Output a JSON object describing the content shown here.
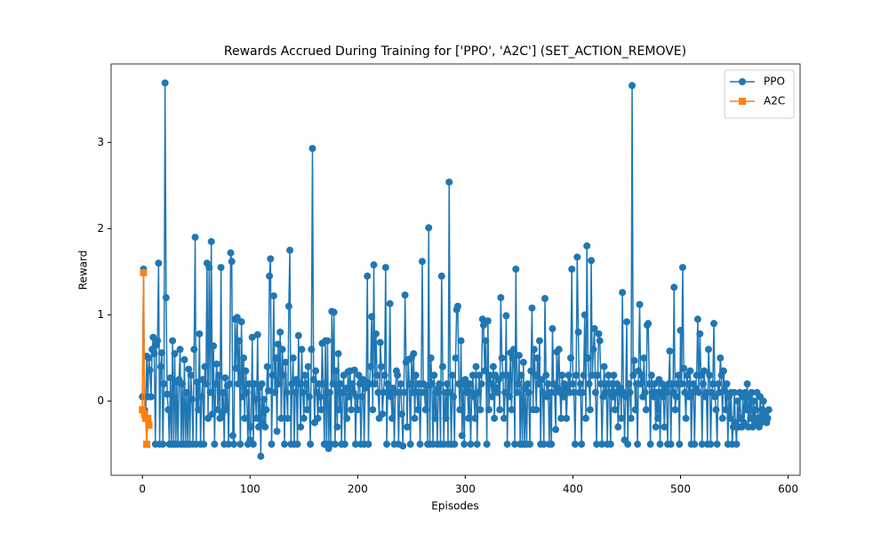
{
  "chart_data": {
    "type": "line",
    "title": "Rewards Accrued During Training for ['PPO', 'A2C'] (SET_ACTION_REMOVE)",
    "x_label": "Episodes",
    "y_label": "Reward",
    "xlim": [
      -29.1,
      611.1
    ],
    "ylim": [
      -0.86,
      3.91
    ],
    "xticks": [
      0,
      100,
      200,
      300,
      400,
      500,
      600
    ],
    "yticks": [
      0,
      1,
      2,
      3
    ],
    "grid": false,
    "legend": "upper right",
    "series": [
      {
        "name": "PPO",
        "color": "#1f77b4",
        "marker": "circle",
        "x": [
          0,
          1,
          2,
          3,
          4,
          5,
          6,
          7,
          8,
          9,
          10,
          11,
          12,
          13,
          14,
          15,
          16,
          17,
          18,
          19,
          20,
          21,
          22,
          23,
          24,
          25,
          26,
          27,
          28,
          29,
          30,
          31,
          32,
          33,
          34,
          35,
          36,
          37,
          38,
          39,
          40,
          41,
          42,
          43,
          44,
          45,
          46,
          47,
          48,
          49,
          50,
          51,
          52,
          53,
          54,
          55,
          56,
          57,
          58,
          59,
          60,
          61,
          62,
          63,
          64,
          65,
          66,
          67,
          68,
          69,
          70,
          71,
          72,
          73,
          74,
          75,
          76,
          77,
          78,
          79,
          80,
          81,
          82,
          83,
          84,
          85,
          86,
          87,
          88,
          89,
          90,
          91,
          92,
          93,
          94,
          95,
          96,
          97,
          98,
          99,
          100,
          101,
          102,
          103,
          104,
          105,
          106,
          107,
          108,
          109,
          110,
          111,
          112,
          113,
          114,
          115,
          116,
          117,
          118,
          119,
          120,
          121,
          122,
          123,
          124,
          125,
          126,
          127,
          128,
          129,
          130,
          131,
          132,
          133,
          134,
          135,
          136,
          137,
          138,
          139,
          140,
          141,
          142,
          143,
          144,
          145,
          146,
          147,
          148,
          149,
          150,
          151,
          152,
          153,
          154,
          155,
          156,
          157,
          158,
          159,
          160,
          161,
          162,
          163,
          164,
          165,
          166,
          167,
          168,
          169,
          170,
          171,
          172,
          173,
          174,
          175,
          176,
          177,
          178,
          179,
          180,
          181,
          182,
          183,
          184,
          185,
          186,
          187,
          188,
          189,
          190,
          191,
          192,
          193,
          194,
          195,
          196,
          197,
          198,
          199,
          200,
          201,
          202,
          203,
          204,
          205,
          206,
          207,
          208,
          209,
          210,
          211,
          212,
          213,
          214,
          215,
          216,
          217,
          218,
          219,
          220,
          221,
          222,
          223,
          224,
          225,
          226,
          227,
          228,
          229,
          230,
          231,
          232,
          233,
          234,
          235,
          236,
          237,
          238,
          239,
          240,
          241,
          242,
          243,
          244,
          245,
          246,
          247,
          248,
          249,
          250,
          251,
          252,
          253,
          254,
          255,
          256,
          257,
          258,
          259,
          260,
          261,
          262,
          263,
          264,
          265,
          266,
          267,
          268,
          269,
          270,
          271,
          272,
          273,
          274,
          275,
          276,
          277,
          278,
          279,
          280,
          281,
          282,
          283,
          284,
          285,
          286,
          287,
          288,
          289,
          290,
          291,
          292,
          293,
          294,
          295,
          296,
          297,
          298,
          299,
          300,
          301,
          302,
          303,
          304,
          305,
          306,
          307,
          308,
          309,
          310,
          311,
          312,
          313,
          314,
          315,
          316,
          317,
          318,
          319,
          320,
          321,
          322,
          323,
          324,
          325,
          326,
          327,
          328,
          329,
          330,
          331,
          332,
          333,
          334,
          335,
          336,
          337,
          338,
          339,
          340,
          341,
          342,
          343,
          344,
          345,
          346,
          347,
          348,
          349,
          350,
          351,
          352,
          353,
          354,
          355,
          356,
          357,
          358,
          359,
          360,
          361,
          362,
          363,
          364,
          365,
          366,
          367,
          368,
          369,
          370,
          371,
          372,
          373,
          374,
          375,
          376,
          377,
          378,
          379,
          380,
          381,
          382,
          383,
          384,
          385,
          386,
          387,
          388,
          389,
          390,
          391,
          392,
          393,
          394,
          395,
          396,
          397,
          398,
          399,
          400,
          401,
          402,
          403,
          404,
          405,
          406,
          407,
          408,
          409,
          410,
          411,
          412,
          413,
          414,
          415,
          416,
          417,
          418,
          419,
          420,
          421,
          422,
          423,
          424,
          425,
          426,
          427,
          428,
          429,
          430,
          431,
          432,
          433,
          434,
          435,
          436,
          437,
          438,
          439,
          440,
          441,
          442,
          443,
          444,
          445,
          446,
          447,
          448,
          449,
          450,
          451,
          452,
          453,
          454,
          455,
          456,
          457,
          458,
          459,
          460,
          461,
          462,
          463,
          464,
          465,
          466,
          467,
          468,
          469,
          470,
          471,
          472,
          473,
          474,
          475,
          476,
          477,
          478,
          479,
          480,
          481,
          482,
          483,
          484,
          485,
          486,
          487,
          488,
          489,
          490,
          491,
          492,
          493,
          494,
          495,
          496,
          497,
          498,
          499,
          500,
          501,
          502,
          503,
          504,
          505,
          506,
          507,
          508,
          509,
          510,
          511,
          512,
          513,
          514,
          515,
          516,
          517,
          518,
          519,
          520,
          521,
          522,
          523,
          524,
          525,
          526,
          527,
          528,
          529,
          530,
          531,
          532,
          533,
          534,
          535,
          536,
          537,
          538,
          539,
          540,
          541,
          542,
          543,
          544,
          545,
          546,
          547,
          548,
          549,
          550,
          551,
          552,
          553,
          554,
          555,
          556,
          557,
          558,
          559,
          560,
          561,
          562,
          563,
          564,
          565,
          566,
          567,
          568,
          569,
          570,
          571,
          572,
          573,
          574,
          575,
          576,
          577,
          578,
          579,
          580,
          581,
          582
        ],
        "values": [
          0.05,
          1.53,
          -0.1,
          -0.2,
          0.52,
          0.05,
          0.5,
          0.36,
          0.05,
          0.6,
          0.74,
          0.55,
          -0.5,
          0.65,
          0.7,
          1.6,
          -0.5,
          0.4,
          0.56,
          -0.5,
          0.2,
          3.69,
          1.2,
          0.08,
          -0.1,
          -0.5,
          0.27,
          -0.5,
          0.7,
          -0.5,
          0.55,
          -0.5,
          0.22,
          -0.5,
          0.25,
          0.6,
          -0.5,
          0.2,
          -0.5,
          0.48,
          -0.5,
          0.1,
          -0.5,
          0.37,
          -0.5,
          0.3,
          0.02,
          -0.5,
          0.6,
          1.9,
          -0.5,
          0.22,
          -0.1,
          0.78,
          -0.5,
          0.05,
          0.25,
          -0.5,
          0.4,
          0.2,
          1.6,
          -0.2,
          1.55,
          0.1,
          1.85,
          -0.15,
          0.64,
          -0.5,
          0.2,
          0.43,
          -0.1,
          0.3,
          -0.2,
          1.55,
          -0.15,
          0.1,
          -0.5,
          0.27,
          -0.1,
          0.18,
          -0.5,
          0.2,
          1.72,
          1.62,
          -0.4,
          -0.5,
          0.95,
          0.38,
          0.97,
          0.2,
          0.7,
          -0.5,
          0.92,
          0.05,
          0.5,
          -0.2,
          0.35,
          0.1,
          -0.5,
          0.2,
          -0.45,
          -0.3,
          0.74,
          -0.5,
          0.2,
          0.02,
          -0.2,
          0.77,
          -0.3,
          0.16,
          -0.64,
          0.2,
          -0.25,
          0.02,
          -0.3,
          -0.1,
          0.4,
          0.12,
          1.45,
          1.65,
          -0.5,
          0.3,
          1.22,
          0.1,
          0.5,
          -0.35,
          0.66,
          0.2,
          0.8,
          -0.2,
          0.6,
          0.3,
          -0.5,
          0.45,
          0.1,
          -0.2,
          1.1,
          1.75,
          -0.5,
          0.2,
          0.5,
          -0.5,
          0.1,
          0.25,
          -0.5,
          0.76,
          0.2,
          -0.3,
          0.6,
          0.1,
          -0.2,
          0.3,
          0.2,
          -0.1,
          0.4,
          0.05,
          -0.5,
          0.6,
          2.93,
          0.25,
          -0.25,
          0.35,
          0.1,
          -0.2,
          0.2,
          0.05,
          -0.1,
          0.67,
          0.2,
          -0.5,
          0.7,
          -0.5,
          0.7,
          -0.55,
          0.1,
          -0.5,
          1.04,
          0.2,
          1.03,
          -0.5,
          0.35,
          -0.3,
          0.55,
          -0.1,
          0.2,
          -0.5,
          0.1,
          0.3,
          -0.5,
          0.15,
          -0.2,
          0.34,
          0.05,
          0.35,
          -0.1,
          0.2,
          0.1,
          0.36,
          -0.5,
          0.05,
          -0.1,
          0.3,
          0.2,
          -0.5,
          0.05,
          0.25,
          -0.5,
          0.15,
          0.22,
          1.45,
          -0.5,
          0.2,
          0.4,
          0.98,
          -0.1,
          1.58,
          0.2,
          0.78,
          0.3,
          0.1,
          -0.2,
          0.68,
          0.4,
          -0.15,
          0.1,
          0.3,
          1.55,
          -0.5,
          0.2,
          0.1,
          1.13,
          0.05,
          -0.2,
          0.15,
          -0.5,
          0.1,
          0.35,
          0.3,
          -0.5,
          0.1,
          0.2,
          -0.15,
          -0.52,
          0.1,
          1.23,
          0.45,
          -0.3,
          0.48,
          0.2,
          -0.5,
          0.5,
          0.1,
          0.55,
          -0.2,
          0.3,
          0.1,
          -0.1,
          0.2,
          -0.5,
          0.1,
          1.62,
          0.2,
          0.1,
          -0.1,
          0.18,
          -0.5,
          2.01,
          -0.5,
          0.5,
          0.2,
          -0.5,
          0.3,
          -0.2,
          0.1,
          -0.5,
          0.15,
          0.2,
          -0.5,
          1.45,
          0.4,
          -0.5,
          0.1,
          -0.2,
          0.2,
          -0.5,
          2.54,
          0.1,
          -0.5,
          0.3,
          0.05,
          -0.5,
          0.5,
          1.06,
          1.1,
          0.2,
          -0.1,
          0.7,
          -0.4,
          0.2,
          -0.5,
          0.25,
          0.1,
          0.15,
          -0.2,
          0.2,
          -0.5,
          0.1,
          0.3,
          0.05,
          -0.2,
          0.4,
          -0.5,
          0.1,
          0.3,
          -0.1,
          0.2,
          0.95,
          0.88,
          0.35,
          0.7,
          -0.5,
          0.93,
          -0.1,
          0.3,
          0.2,
          0.05,
          0.4,
          -0.2,
          0.3,
          0.15,
          0.1,
          0.25,
          -0.1,
          1.2,
          0.5,
          0.3,
          -0.2,
          0.1,
          0.99,
          -0.5,
          0.3,
          0.05,
          0.56,
          -0.1,
          0.5,
          0.6,
          -0.5,
          1.53,
          0.1,
          0.2,
          0.53,
          -0.5,
          0.3,
          -0.5,
          0.45,
          -0.5,
          0.15,
          -0.5,
          0.2,
          0.1,
          -0.5,
          0.35,
          1.08,
          -0.1,
          0.6,
          0.3,
          -0.1,
          0.5,
          0.2,
          0.7,
          -0.5,
          0.25,
          0.1,
          -0.5,
          1.19,
          0.3,
          0.05,
          0.2,
          -0.5,
          0.1,
          -0.5,
          0.84,
          0.2,
          0.1,
          -0.33,
          0.57,
          0.15,
          0.6,
          0.1,
          -0.2,
          0.3,
          0.05,
          0.2,
          0.1,
          -0.2,
          0.15,
          0.3,
          0.1,
          0.5,
          1.53,
          0.2,
          0.1,
          -0.5,
          0.3,
          1.67,
          0.8,
          0.1,
          0.2,
          -0.5,
          0.1,
          0.3,
          1.0,
          -0.2,
          1.8,
          0.5,
          0.2,
          -0.1,
          1.63,
          0.3,
          0.6,
          0.84,
          0.1,
          -0.5,
          0.3,
          0.78,
          0.7,
          0.2,
          -0.5,
          0.05,
          0.4,
          0.1,
          0.2,
          -0.5,
          0.3,
          0.1,
          -0.5,
          0.2,
          0.05,
          0.3,
          -0.1,
          0.1,
          0.2,
          -0.3,
          0.1,
          0.15,
          -0.2,
          1.26,
          0.1,
          -0.45,
          0.05,
          0.92,
          -0.5,
          0.2,
          0.1,
          -0.2,
          3.66,
          0.3,
          0.47,
          -0.1,
          0.2,
          -0.5,
          0.35,
          1.12,
          0.2,
          0.3,
          0.05,
          0.5,
          0.1,
          -0.1,
          0.88,
          0.9,
          0.2,
          -0.5,
          0.3,
          0.1,
          0.05,
          0.2,
          -0.3,
          0.1,
          -0.2,
          0.25,
          -0.5,
          0.1,
          0.2,
          0.05,
          -0.3,
          0.15,
          0.1,
          -0.5,
          0.2,
          0.58,
          -0.5,
          0.2,
          0.1,
          1.32,
          -0.1,
          0.05,
          0.2,
          0.3,
          -0.5,
          0.82,
          0.2,
          1.55,
          0.38,
          0.1,
          -0.2,
          0.3,
          0.2,
          0.05,
          0.35,
          -0.5,
          0.1,
          0.2,
          -0.5,
          0.15,
          0.3,
          0.95,
          0.1,
          0.78,
          0.3,
          -0.5,
          0.2,
          0.35,
          0.05,
          0.1,
          -0.5,
          0.6,
          0.3,
          -0.5,
          0.1,
          0.2,
          0.9,
          0.05,
          -0.1,
          -0.5,
          0.2,
          0.1,
          0.5,
          0.3,
          -0.2,
          0.35,
          0.12,
          -0.1,
          0.2,
          -0.5,
          0.05,
          -0.2,
          0.1,
          -0.5,
          -0.3,
          0.1,
          -0.25,
          -0.5,
          0.0,
          -0.3,
          0.1,
          -0.2,
          -0.3,
          0.05,
          -0.25,
          0.1,
          -0.1,
          0.2,
          -0.3,
          0.05,
          -0.2,
          0.1,
          -0.3,
          0.0,
          -0.25,
          -0.1,
          0.1,
          -0.2,
          -0.3,
          0.05,
          -0.25,
          -0.1,
          0.0,
          -0.2,
          -0.15,
          -0.25,
          -0.2,
          -0.1
        ]
      },
      {
        "name": "A2C",
        "color": "#ff7f0e",
        "marker": "square",
        "x": [
          0,
          1,
          2,
          3,
          4,
          5,
          6
        ],
        "values": [
          -0.1,
          1.49,
          -0.15,
          -0.2,
          -0.5,
          -0.2,
          -0.28
        ]
      }
    ]
  }
}
